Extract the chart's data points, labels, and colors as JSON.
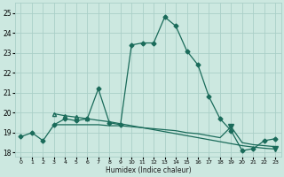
{
  "xlabel": "Humidex (Indice chaleur)",
  "xlim": [
    -0.5,
    23.5
  ],
  "ylim": [
    17.8,
    25.5
  ],
  "yticks": [
    18,
    19,
    20,
    21,
    22,
    23,
    24,
    25
  ],
  "xticks": [
    0,
    1,
    2,
    3,
    4,
    5,
    6,
    7,
    8,
    9,
    10,
    11,
    12,
    13,
    14,
    15,
    16,
    17,
    18,
    19,
    20,
    21,
    22,
    23
  ],
  "bg_color": "#cce8e0",
  "grid_color": "#aacfc8",
  "line_color": "#1a6b5a",
  "line1_x": [
    0,
    1,
    2,
    3,
    4,
    5,
    6,
    7,
    8,
    9,
    10,
    11,
    12,
    13,
    14,
    15,
    16,
    17,
    18,
    19,
    20,
    21,
    22,
    23
  ],
  "line1_y": [
    18.8,
    19.0,
    18.6,
    19.4,
    19.7,
    19.6,
    19.7,
    21.2,
    19.5,
    19.4,
    23.4,
    23.5,
    23.5,
    24.8,
    24.35,
    23.1,
    22.4,
    20.8,
    19.7,
    19.1,
    18.1,
    18.2,
    18.6,
    18.7
  ],
  "line2_x": [
    3,
    4,
    5,
    6,
    7,
    8,
    9,
    10,
    11,
    12,
    13,
    14,
    15,
    16,
    17,
    18,
    19,
    20,
    21,
    22,
    23
  ],
  "line2_y": [
    19.4,
    19.4,
    19.4,
    19.4,
    19.4,
    19.35,
    19.35,
    19.3,
    19.25,
    19.2,
    19.15,
    19.1,
    19.0,
    18.95,
    18.85,
    18.75,
    19.3,
    18.5,
    18.4,
    18.35,
    18.3
  ],
  "line3_x": [
    3,
    4,
    5,
    6,
    7,
    8,
    9,
    10,
    11,
    12,
    13,
    14,
    15,
    16,
    17,
    18,
    19,
    20,
    21,
    22,
    23
  ],
  "line3_y": [
    19.95,
    19.85,
    19.78,
    19.7,
    19.62,
    19.55,
    19.45,
    19.35,
    19.25,
    19.15,
    19.05,
    18.95,
    18.85,
    18.75,
    18.65,
    18.55,
    18.45,
    18.35,
    18.28,
    18.22,
    18.18
  ],
  "line2_triangle_x": 19,
  "line2_triangle_y": 19.3,
  "line3_triangle_x": 23,
  "line3_triangle_y": 18.18,
  "marker_size": 2.5,
  "line_width": 0.9
}
